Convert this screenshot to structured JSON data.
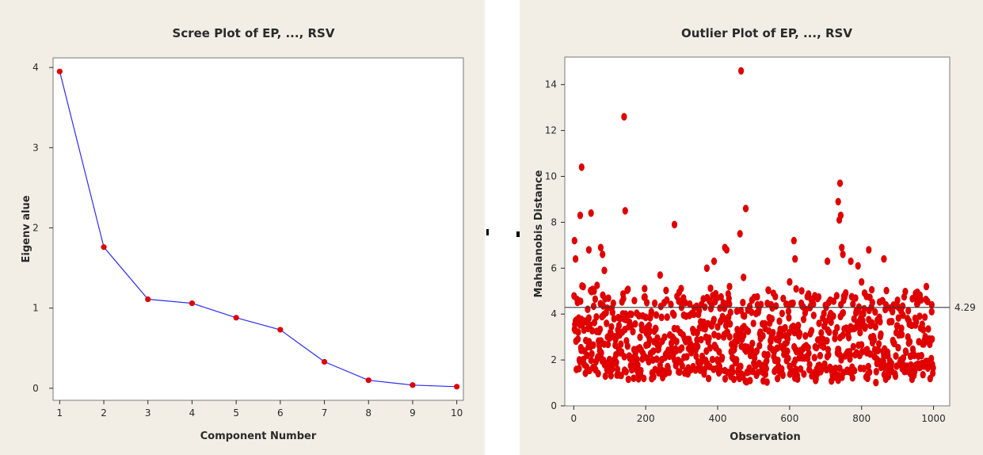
{
  "chart_data": [
    {
      "type": "line",
      "title": "Scree Plot of EP, ..., RSV",
      "xlabel": "Component Number",
      "ylabel": "Eigenv alue",
      "x": [
        1,
        2,
        3,
        4,
        5,
        6,
        7,
        8,
        9,
        10
      ],
      "values": [
        3.95,
        1.76,
        1.11,
        1.06,
        0.88,
        0.73,
        0.33,
        0.1,
        0.04,
        0.02
      ],
      "xlim": [
        0.85,
        10.15
      ],
      "ylim": [
        -0.15,
        4.12
      ],
      "x_ticks": [
        1,
        2,
        3,
        4,
        5,
        6,
        7,
        8,
        9,
        10
      ],
      "y_ticks": [
        0,
        1,
        2,
        3,
        4
      ],
      "line_color": "#2b2bff",
      "marker_color": "#e00000",
      "grid": false
    },
    {
      "type": "scatter",
      "title": "Outlier Plot of EP, ..., RSV",
      "xlabel": "Observation",
      "ylabel": "Mahalanobis Distance",
      "xlim": [
        -25,
        1045
      ],
      "ylim": [
        0,
        15.2
      ],
      "x_ticks": [
        0,
        200,
        400,
        600,
        800,
        1000
      ],
      "y_ticks": [
        0,
        2,
        4,
        6,
        8,
        10,
        12,
        14
      ],
      "reference_line": {
        "value": 4.29,
        "label": "4.29"
      },
      "marker_color": "#e00000",
      "n_points": 1000,
      "outliers": [
        {
          "x": 2,
          "y": 7.2
        },
        {
          "x": 5,
          "y": 6.4
        },
        {
          "x": 18,
          "y": 8.3
        },
        {
          "x": 22,
          "y": 10.4
        },
        {
          "x": 48,
          "y": 8.4
        },
        {
          "x": 42,
          "y": 6.8
        },
        {
          "x": 75,
          "y": 6.9
        },
        {
          "x": 80,
          "y": 6.6
        },
        {
          "x": 85,
          "y": 5.9
        },
        {
          "x": 140,
          "y": 12.6
        },
        {
          "x": 143,
          "y": 8.5
        },
        {
          "x": 240,
          "y": 5.7
        },
        {
          "x": 280,
          "y": 7.9
        },
        {
          "x": 305,
          "y": 4.7
        },
        {
          "x": 370,
          "y": 6.0
        },
        {
          "x": 390,
          "y": 6.3
        },
        {
          "x": 420,
          "y": 6.9
        },
        {
          "x": 425,
          "y": 6.8
        },
        {
          "x": 433,
          "y": 5.2
        },
        {
          "x": 465,
          "y": 14.6
        },
        {
          "x": 462,
          "y": 7.5
        },
        {
          "x": 478,
          "y": 8.6
        },
        {
          "x": 472,
          "y": 5.6
        },
        {
          "x": 470,
          "y": 4.5
        },
        {
          "x": 600,
          "y": 5.4
        },
        {
          "x": 612,
          "y": 7.2
        },
        {
          "x": 615,
          "y": 6.4
        },
        {
          "x": 618,
          "y": 5.1
        },
        {
          "x": 705,
          "y": 6.3
        },
        {
          "x": 735,
          "y": 8.9
        },
        {
          "x": 738,
          "y": 8.1
        },
        {
          "x": 740,
          "y": 9.7
        },
        {
          "x": 742,
          "y": 8.3
        },
        {
          "x": 745,
          "y": 6.9
        },
        {
          "x": 748,
          "y": 6.6
        },
        {
          "x": 750,
          "y": 4.6
        },
        {
          "x": 770,
          "y": 6.3
        },
        {
          "x": 790,
          "y": 6.1
        },
        {
          "x": 800,
          "y": 5.4
        },
        {
          "x": 820,
          "y": 6.8
        },
        {
          "x": 830,
          "y": 4.5
        },
        {
          "x": 862,
          "y": 6.4
        },
        {
          "x": 900,
          "y": 4.6
        },
        {
          "x": 950,
          "y": 4.9
        },
        {
          "x": 980,
          "y": 5.2
        },
        {
          "x": 995,
          "y": 4.4
        }
      ],
      "bulk": {
        "y_range": [
          1.0,
          5.3
        ],
        "typical": 2.6
      },
      "grid": false
    }
  ]
}
